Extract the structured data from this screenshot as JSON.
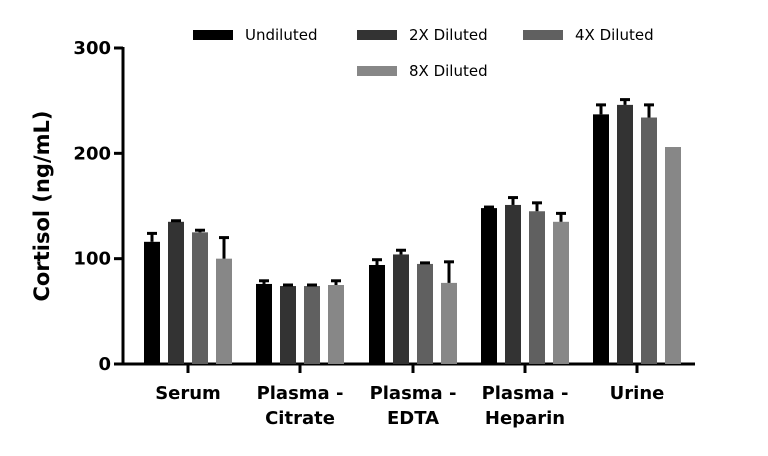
{
  "chart_data": {
    "type": "bar",
    "title": "",
    "xlabel": "",
    "ylabel": "Cortisol (ng/mL)",
    "ylim": [
      0,
      300
    ],
    "yticks": [
      "0",
      "100",
      "200",
      "300"
    ],
    "categories": [
      [
        "Serum"
      ],
      [
        "Plasma -",
        "Citrate"
      ],
      [
        "Plasma -",
        "EDTA"
      ],
      [
        "Plasma -",
        "Heparin"
      ],
      [
        "Urine"
      ]
    ],
    "legend_position": "top",
    "series": [
      {
        "name": "Undiluted",
        "color": "#000000",
        "values": [
          116,
          76,
          94,
          148,
          237
        ],
        "errors": [
          8,
          3,
          5,
          1,
          9
        ]
      },
      {
        "name": "2X Diluted",
        "color": "#333333",
        "values": [
          135,
          74,
          104,
          151,
          246
        ],
        "errors": [
          1,
          1,
          4,
          7,
          5
        ]
      },
      {
        "name": "4X Diluted",
        "color": "#606060",
        "values": [
          125,
          74,
          95,
          145,
          234
        ],
        "errors": [
          2,
          1,
          1,
          8,
          12
        ]
      },
      {
        "name": "8X Diluted",
        "color": "#878787",
        "values": [
          100,
          75,
          77,
          135,
          206
        ],
        "errors": [
          20,
          4,
          20,
          8,
          0
        ]
      }
    ]
  }
}
